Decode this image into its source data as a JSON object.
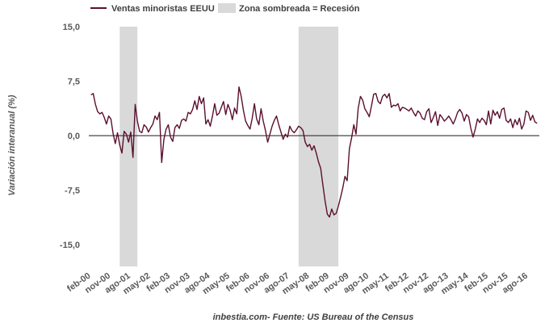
{
  "chart_data": {
    "type": "line",
    "series": [
      {
        "name": "Ventas minoristas EEUU",
        "color": "#5b0f2e",
        "points": [
          [
            "2000-02",
            5.6
          ],
          [
            "2000-03",
            5.8
          ],
          [
            "2000-04",
            4.3
          ],
          [
            "2000-05",
            3.3
          ],
          [
            "2000-06",
            3.0
          ],
          [
            "2000-07",
            3.2
          ],
          [
            "2000-08",
            2.5
          ],
          [
            "2000-09",
            1.6
          ],
          [
            "2000-10",
            2.7
          ],
          [
            "2000-11",
            2.3
          ],
          [
            "2000-12",
            0.3
          ],
          [
            "2001-01",
            -1.1
          ],
          [
            "2001-02",
            0.4
          ],
          [
            "2001-03",
            -1.3
          ],
          [
            "2001-04",
            -2.4
          ],
          [
            "2001-05",
            0.6
          ],
          [
            "2001-06",
            0.2
          ],
          [
            "2001-07",
            -0.9
          ],
          [
            "2001-08",
            0.5
          ],
          [
            "2001-09",
            -3.0
          ],
          [
            "2001-10",
            4.3
          ],
          [
            "2001-11",
            2.0
          ],
          [
            "2001-12",
            0.6
          ],
          [
            "2002-01",
            0.4
          ],
          [
            "2002-02",
            1.5
          ],
          [
            "2002-03",
            1.2
          ],
          [
            "2002-04",
            0.5
          ],
          [
            "2002-05",
            1.1
          ],
          [
            "2002-06",
            1.6
          ],
          [
            "2002-07",
            2.7
          ],
          [
            "2002-08",
            2.2
          ],
          [
            "2002-09",
            3.2
          ],
          [
            "2002-10",
            -3.7
          ],
          [
            "2002-11",
            -0.5
          ],
          [
            "2002-12",
            0.9
          ],
          [
            "2003-01",
            1.5
          ],
          [
            "2003-02",
            -0.2
          ],
          [
            "2003-03",
            -0.8
          ],
          [
            "2003-04",
            1.1
          ],
          [
            "2003-05",
            1.5
          ],
          [
            "2003-06",
            1.0
          ],
          [
            "2003-07",
            2.1
          ],
          [
            "2003-08",
            2.3
          ],
          [
            "2003-09",
            2.0
          ],
          [
            "2003-10",
            3.2
          ],
          [
            "2003-11",
            3.0
          ],
          [
            "2003-12",
            3.6
          ],
          [
            "2004-01",
            4.8
          ],
          [
            "2004-02",
            3.6
          ],
          [
            "2004-03",
            5.4
          ],
          [
            "2004-04",
            4.4
          ],
          [
            "2004-05",
            5.2
          ],
          [
            "2004-06",
            1.6
          ],
          [
            "2004-07",
            2.2
          ],
          [
            "2004-08",
            1.3
          ],
          [
            "2004-09",
            2.7
          ],
          [
            "2004-10",
            4.4
          ],
          [
            "2004-11",
            2.8
          ],
          [
            "2004-12",
            3.1
          ],
          [
            "2005-01",
            3.9
          ],
          [
            "2005-02",
            4.7
          ],
          [
            "2005-03",
            2.9
          ],
          [
            "2005-04",
            4.3
          ],
          [
            "2005-05",
            3.5
          ],
          [
            "2005-06",
            2.2
          ],
          [
            "2005-07",
            3.8
          ],
          [
            "2005-08",
            3.0
          ],
          [
            "2005-09",
            6.7
          ],
          [
            "2005-10",
            5.4
          ],
          [
            "2005-11",
            3.5
          ],
          [
            "2005-12",
            2.0
          ],
          [
            "2006-01",
            1.4
          ],
          [
            "2006-02",
            0.9
          ],
          [
            "2006-03",
            2.4
          ],
          [
            "2006-04",
            4.4
          ],
          [
            "2006-05",
            2.3
          ],
          [
            "2006-06",
            1.5
          ],
          [
            "2006-07",
            3.7
          ],
          [
            "2006-08",
            2.0
          ],
          [
            "2006-09",
            0.7
          ],
          [
            "2006-10",
            -0.9
          ],
          [
            "2006-11",
            0.2
          ],
          [
            "2006-12",
            1.3
          ],
          [
            "2007-01",
            2.1
          ],
          [
            "2007-02",
            2.7
          ],
          [
            "2007-03",
            1.5
          ],
          [
            "2007-04",
            0.5
          ],
          [
            "2007-05",
            -0.5
          ],
          [
            "2007-06",
            0.2
          ],
          [
            "2007-07",
            -0.2
          ],
          [
            "2007-08",
            1.3
          ],
          [
            "2007-09",
            0.7
          ],
          [
            "2007-10",
            0.4
          ],
          [
            "2007-11",
            0.8
          ],
          [
            "2007-12",
            1.3
          ],
          [
            "2008-01",
            1.1
          ],
          [
            "2008-02",
            0.7
          ],
          [
            "2008-03",
            -0.9
          ],
          [
            "2008-04",
            -1.5
          ],
          [
            "2008-05",
            -1.2
          ],
          [
            "2008-06",
            -2.0
          ],
          [
            "2008-07",
            -1.4
          ],
          [
            "2008-08",
            -2.4
          ],
          [
            "2008-09",
            -3.6
          ],
          [
            "2008-10",
            -4.5
          ],
          [
            "2008-11",
            -6.8
          ],
          [
            "2008-12",
            -9.0
          ],
          [
            "2009-01",
            -10.8
          ],
          [
            "2009-02",
            -11.2
          ],
          [
            "2009-03",
            -10.1
          ],
          [
            "2009-04",
            -10.9
          ],
          [
            "2009-05",
            -10.7
          ],
          [
            "2009-06",
            -9.7
          ],
          [
            "2009-07",
            -8.5
          ],
          [
            "2009-08",
            -7.2
          ],
          [
            "2009-09",
            -5.6
          ],
          [
            "2009-10",
            -6.2
          ],
          [
            "2009-11",
            -1.8
          ],
          [
            "2009-12",
            -0.3
          ],
          [
            "2010-01",
            1.5
          ],
          [
            "2010-02",
            0.2
          ],
          [
            "2010-03",
            3.8
          ],
          [
            "2010-04",
            5.4
          ],
          [
            "2010-05",
            4.9
          ],
          [
            "2010-06",
            3.7
          ],
          [
            "2010-07",
            3.2
          ],
          [
            "2010-08",
            2.6
          ],
          [
            "2010-09",
            4.1
          ],
          [
            "2010-10",
            5.7
          ],
          [
            "2010-11",
            5.8
          ],
          [
            "2010-12",
            4.7
          ],
          [
            "2011-01",
            4.4
          ],
          [
            "2011-02",
            5.4
          ],
          [
            "2011-03",
            5.7
          ],
          [
            "2011-04",
            5.2
          ],
          [
            "2011-05",
            5.8
          ],
          [
            "2011-06",
            3.9
          ],
          [
            "2011-07",
            4.2
          ],
          [
            "2011-08",
            4.1
          ],
          [
            "2011-09",
            4.4
          ],
          [
            "2011-10",
            3.4
          ],
          [
            "2011-11",
            3.9
          ],
          [
            "2011-12",
            3.8
          ],
          [
            "2012-01",
            3.6
          ],
          [
            "2012-02",
            3.4
          ],
          [
            "2012-03",
            3.8
          ],
          [
            "2012-04",
            3.2
          ],
          [
            "2012-05",
            2.7
          ],
          [
            "2012-06",
            3.4
          ],
          [
            "2012-07",
            3.1
          ],
          [
            "2012-08",
            2.4
          ],
          [
            "2012-09",
            2.2
          ],
          [
            "2012-10",
            3.3
          ],
          [
            "2012-11",
            3.7
          ],
          [
            "2012-12",
            1.8
          ],
          [
            "2013-01",
            2.5
          ],
          [
            "2013-02",
            3.3
          ],
          [
            "2013-03",
            1.4
          ],
          [
            "2013-04",
            2.9
          ],
          [
            "2013-05",
            2.5
          ],
          [
            "2013-06",
            2.0
          ],
          [
            "2013-07",
            2.3
          ],
          [
            "2013-08",
            2.7
          ],
          [
            "2013-09",
            2.2
          ],
          [
            "2013-10",
            1.6
          ],
          [
            "2013-11",
            2.3
          ],
          [
            "2013-12",
            3.2
          ],
          [
            "2014-01",
            3.6
          ],
          [
            "2014-02",
            3.1
          ],
          [
            "2014-03",
            2.0
          ],
          [
            "2014-04",
            2.9
          ],
          [
            "2014-05",
            2.6
          ],
          [
            "2014-06",
            1.0
          ],
          [
            "2014-07",
            -0.2
          ],
          [
            "2014-08",
            0.9
          ],
          [
            "2014-09",
            2.3
          ],
          [
            "2014-10",
            1.8
          ],
          [
            "2014-11",
            2.4
          ],
          [
            "2014-12",
            2.1
          ],
          [
            "2015-01",
            1.5
          ],
          [
            "2015-02",
            3.4
          ],
          [
            "2015-03",
            1.6
          ],
          [
            "2015-04",
            3.5
          ],
          [
            "2015-05",
            2.8
          ],
          [
            "2015-06",
            3.3
          ],
          [
            "2015-07",
            2.4
          ],
          [
            "2015-08",
            3.6
          ],
          [
            "2015-09",
            3.8
          ],
          [
            "2015-10",
            2.1
          ],
          [
            "2015-11",
            1.8
          ],
          [
            "2015-12",
            2.3
          ],
          [
            "2016-01",
            1.1
          ],
          [
            "2016-02",
            2.2
          ],
          [
            "2016-03",
            1.5
          ],
          [
            "2016-04",
            2.4
          ],
          [
            "2016-05",
            0.9
          ],
          [
            "2016-06",
            1.6
          ],
          [
            "2016-07",
            3.4
          ],
          [
            "2016-08",
            3.2
          ],
          [
            "2016-09",
            2.1
          ],
          [
            "2016-10",
            2.8
          ],
          [
            "2016-11",
            1.9
          ],
          [
            "2016-12",
            1.7
          ]
        ]
      }
    ],
    "recessions": [
      {
        "start": "2001-03",
        "end": "2001-11"
      },
      {
        "start": "2007-12",
        "end": "2009-06"
      }
    ],
    "recession_color": "#d9d9d9",
    "legend": {
      "series_label": "Ventas minoristas EEUU",
      "shade_label": "Zona sombreada = Recesión",
      "position": "top"
    },
    "ylabel": "Variación interanual (%)",
    "ylim": [
      -18,
      15
    ],
    "yticks": [
      {
        "value": 15,
        "label": "15,0"
      },
      {
        "value": 7.5,
        "label": "7,5"
      },
      {
        "value": 0,
        "label": "0,0"
      },
      {
        "value": -7.5,
        "label": "-7,5"
      },
      {
        "value": -15,
        "label": "-15,0"
      }
    ],
    "xlim": [
      "2000-01",
      "2017-01"
    ],
    "xticks": [
      {
        "date": "2000-02",
        "label": "feb-00"
      },
      {
        "date": "2000-11",
        "label": "nov-00"
      },
      {
        "date": "2001-08",
        "label": "ago-01"
      },
      {
        "date": "2002-05",
        "label": "may-02"
      },
      {
        "date": "2003-02",
        "label": "feb-03"
      },
      {
        "date": "2003-11",
        "label": "nov-03"
      },
      {
        "date": "2004-08",
        "label": "ago-04"
      },
      {
        "date": "2005-05",
        "label": "may-05"
      },
      {
        "date": "2006-02",
        "label": "feb-06"
      },
      {
        "date": "2006-11",
        "label": "nov-06"
      },
      {
        "date": "2007-08",
        "label": "ago-07"
      },
      {
        "date": "2008-05",
        "label": "may-08"
      },
      {
        "date": "2009-02",
        "label": "feb-09"
      },
      {
        "date": "2009-11",
        "label": "nov-09"
      },
      {
        "date": "2010-08",
        "label": "ago-10"
      },
      {
        "date": "2011-05",
        "label": "may-11"
      },
      {
        "date": "2012-02",
        "label": "feb-12"
      },
      {
        "date": "2012-11",
        "label": "nov-12"
      },
      {
        "date": "2013-08",
        "label": "ago-13"
      },
      {
        "date": "2014-05",
        "label": "may-14"
      },
      {
        "date": "2015-02",
        "label": "feb-15"
      },
      {
        "date": "2015-11",
        "label": "nov-15"
      },
      {
        "date": "2016-08",
        "label": "ago-16"
      }
    ],
    "grid": false,
    "source": "inbestia.com- Fuente: US Bureau of the Census"
  }
}
